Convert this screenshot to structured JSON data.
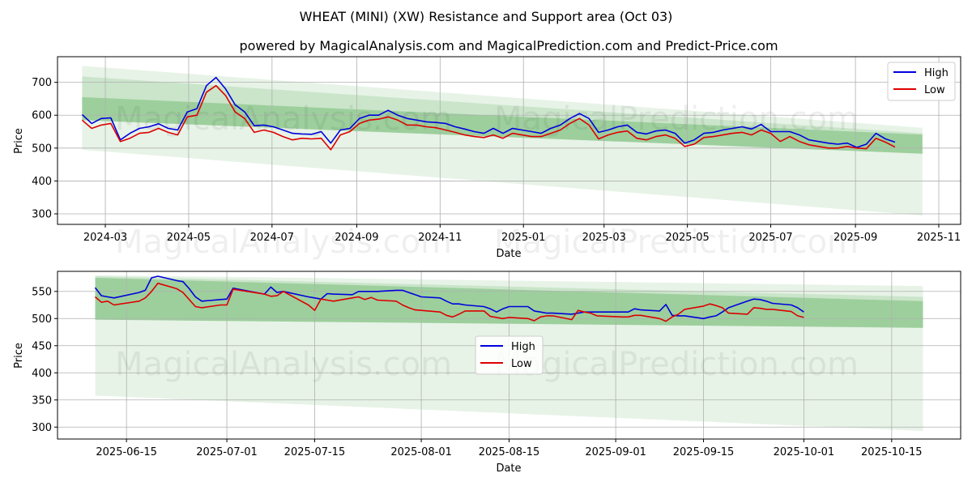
{
  "title": "WHEAT (MINI) (XW) Resistance and Support area (Oct 03)",
  "subtitle": "powered by MagicalAnalysis.com and MagicalPrediction.com and Predict-Price.com",
  "watermarks": [
    "MagicalAnalysis.com",
    "MagicalPrediction.com"
  ],
  "colors": {
    "high": "#0000dd",
    "low": "#dd0000",
    "band_light": "#d4e9d4",
    "band_mid": "#b2d8b2",
    "band_dark": "#7fbf7f",
    "grid": "#b0b0b0"
  },
  "chart_data": [
    {
      "type": "line",
      "xlabel": "Date",
      "ylabel": "Price",
      "xlim": [
        "2024-01-26",
        "2025-11-17"
      ],
      "ylim": [
        268,
        778
      ],
      "x_ticks": [
        "2024-03",
        "2024-05",
        "2024-07",
        "2024-09",
        "2024-11",
        "2025-01",
        "2025-03",
        "2025-05",
        "2025-07",
        "2025-09",
        "2025-11"
      ],
      "y_ticks": [
        300,
        400,
        500,
        600,
        700
      ],
      "legend": {
        "position": "top-right",
        "entries": [
          "High",
          "Low"
        ]
      },
      "bands": [
        {
          "name": "outer",
          "x": [
            "2024-02-13",
            "2025-10-20"
          ],
          "upper": [
            750,
            562
          ],
          "lower": [
            495,
            295
          ]
        },
        {
          "name": "middle",
          "x": [
            "2024-02-13",
            "2025-10-20"
          ],
          "upper": [
            718,
            545
          ],
          "lower": [
            585,
            483
          ]
        },
        {
          "name": "inner",
          "x": [
            "2024-02-13",
            "2025-10-20"
          ],
          "upper": [
            655,
            541
          ],
          "lower": [
            585,
            483
          ]
        }
      ],
      "series": [
        {
          "name": "High",
          "x": [
            "2024-02-13",
            "2024-02-20",
            "2024-02-27",
            "2024-03-05",
            "2024-03-12",
            "2024-03-19",
            "2024-03-26",
            "2024-04-02",
            "2024-04-09",
            "2024-04-16",
            "2024-04-23",
            "2024-04-30",
            "2024-05-07",
            "2024-05-14",
            "2024-05-21",
            "2024-05-28",
            "2024-06-04",
            "2024-06-11",
            "2024-06-18",
            "2024-06-25",
            "2024-07-02",
            "2024-07-09",
            "2024-07-16",
            "2024-07-23",
            "2024-07-30",
            "2024-08-06",
            "2024-08-13",
            "2024-08-20",
            "2024-08-27",
            "2024-09-03",
            "2024-09-10",
            "2024-09-17",
            "2024-09-24",
            "2024-10-01",
            "2024-10-08",
            "2024-10-15",
            "2024-10-22",
            "2024-10-29",
            "2024-11-05",
            "2024-11-12",
            "2024-11-19",
            "2024-11-26",
            "2024-12-03",
            "2024-12-10",
            "2024-12-17",
            "2024-12-24",
            "2024-12-31",
            "2025-01-07",
            "2025-01-14",
            "2025-01-21",
            "2025-01-28",
            "2025-02-04",
            "2025-02-11",
            "2025-02-18",
            "2025-02-25",
            "2025-03-04",
            "2025-03-11",
            "2025-03-18",
            "2025-03-25",
            "2025-04-01",
            "2025-04-08",
            "2025-04-15",
            "2025-04-22",
            "2025-04-29",
            "2025-05-06",
            "2025-05-13",
            "2025-05-20",
            "2025-05-27",
            "2025-06-03",
            "2025-06-10",
            "2025-06-17",
            "2025-06-24",
            "2025-07-01",
            "2025-07-08",
            "2025-07-15",
            "2025-07-22",
            "2025-07-29",
            "2025-08-05",
            "2025-08-12",
            "2025-08-19",
            "2025-08-26",
            "2025-09-02",
            "2025-09-09",
            "2025-09-16",
            "2025-09-23",
            "2025-09-30"
          ],
          "values": [
            602,
            575,
            590,
            592,
            525,
            545,
            560,
            565,
            574,
            560,
            555,
            610,
            620,
            690,
            715,
            680,
            632,
            610,
            568,
            570,
            565,
            555,
            545,
            543,
            542,
            550,
            515,
            555,
            560,
            590,
            600,
            600,
            615,
            600,
            590,
            585,
            580,
            578,
            575,
            565,
            558,
            550,
            545,
            560,
            545,
            560,
            555,
            550,
            545,
            560,
            570,
            590,
            605,
            590,
            548,
            555,
            565,
            570,
            548,
            543,
            552,
            555,
            545,
            515,
            525,
            545,
            548,
            555,
            560,
            565,
            558,
            572,
            550,
            550,
            550,
            540,
            525,
            520,
            515,
            512,
            515,
            502,
            512,
            545,
            528,
            518
          ]
        },
        {
          "name": "Low",
          "x": [
            "2024-02-13",
            "2024-02-20",
            "2024-02-27",
            "2024-03-05",
            "2024-03-12",
            "2024-03-19",
            "2024-03-26",
            "2024-04-02",
            "2024-04-09",
            "2024-04-16",
            "2024-04-23",
            "2024-04-30",
            "2024-05-07",
            "2024-05-14",
            "2024-05-21",
            "2024-05-28",
            "2024-06-04",
            "2024-06-11",
            "2024-06-18",
            "2024-06-25",
            "2024-07-02",
            "2024-07-09",
            "2024-07-16",
            "2024-07-23",
            "2024-07-30",
            "2024-08-06",
            "2024-08-13",
            "2024-08-20",
            "2024-08-27",
            "2024-09-03",
            "2024-09-10",
            "2024-09-17",
            "2024-09-24",
            "2024-10-01",
            "2024-10-08",
            "2024-10-15",
            "2024-10-22",
            "2024-10-29",
            "2024-11-05",
            "2024-11-12",
            "2024-11-19",
            "2024-11-26",
            "2024-12-03",
            "2024-12-10",
            "2024-12-17",
            "2024-12-24",
            "2024-12-31",
            "2025-01-07",
            "2025-01-14",
            "2025-01-21",
            "2025-01-28",
            "2025-02-04",
            "2025-02-11",
            "2025-02-18",
            "2025-02-25",
            "2025-03-04",
            "2025-03-11",
            "2025-03-18",
            "2025-03-25",
            "2025-04-01",
            "2025-04-08",
            "2025-04-15",
            "2025-04-22",
            "2025-04-29",
            "2025-05-06",
            "2025-05-13",
            "2025-05-20",
            "2025-05-27",
            "2025-06-03",
            "2025-06-10",
            "2025-06-17",
            "2025-06-24",
            "2025-07-01",
            "2025-07-08",
            "2025-07-15",
            "2025-07-22",
            "2025-07-29",
            "2025-08-05",
            "2025-08-12",
            "2025-08-19",
            "2025-08-26",
            "2025-09-02",
            "2025-09-09",
            "2025-09-16",
            "2025-09-23",
            "2025-09-30"
          ],
          "values": [
            585,
            560,
            570,
            575,
            520,
            530,
            545,
            548,
            560,
            548,
            540,
            595,
            600,
            670,
            690,
            660,
            610,
            590,
            548,
            555,
            548,
            535,
            525,
            530,
            528,
            530,
            495,
            540,
            550,
            575,
            585,
            588,
            595,
            585,
            570,
            570,
            565,
            562,
            555,
            548,
            540,
            535,
            532,
            540,
            530,
            545,
            540,
            535,
            535,
            545,
            555,
            575,
            590,
            570,
            528,
            540,
            548,
            552,
            530,
            525,
            535,
            540,
            530,
            505,
            512,
            532,
            535,
            540,
            545,
            548,
            540,
            555,
            545,
            520,
            535,
            520,
            510,
            505,
            500,
            500,
            505,
            500,
            498,
            530,
            518,
            503
          ]
        }
      ]
    },
    {
      "type": "line",
      "xlabel": "Date",
      "ylabel": "Price",
      "xlim": [
        "2025-06-04",
        "2025-10-26"
      ],
      "ylim": [
        278,
        587
      ],
      "x_ticks": [
        "2025-06-15",
        "2025-07-01",
        "2025-07-15",
        "2025-08-01",
        "2025-08-15",
        "2025-09-01",
        "2025-09-15",
        "2025-10-01",
        "2025-10-15"
      ],
      "y_ticks": [
        300,
        350,
        400,
        450,
        500,
        550
      ],
      "legend": {
        "position": "center",
        "entries": [
          "High",
          "Low"
        ]
      },
      "bands": [
        {
          "name": "outer",
          "x": [
            "2025-06-10",
            "2025-10-20"
          ],
          "upper": [
            580,
            560
          ],
          "lower": [
            358,
            293
          ]
        },
        {
          "name": "middle",
          "x": [
            "2025-06-10",
            "2025-10-20"
          ],
          "upper": [
            578,
            540
          ],
          "lower": [
            498,
            483
          ]
        },
        {
          "name": "inner",
          "x": [
            "2025-06-10",
            "2025-10-20"
          ],
          "upper": [
            575,
            532
          ],
          "lower": [
            498,
            483
          ]
        }
      ],
      "series": [
        {
          "name": "High",
          "x": [
            "2025-06-10",
            "2025-06-11",
            "2025-06-12",
            "2025-06-13",
            "2025-06-17",
            "2025-06-18",
            "2025-06-19",
            "2025-06-20",
            "2025-06-23",
            "2025-06-24",
            "2025-06-25",
            "2025-06-26",
            "2025-06-27",
            "2025-06-30",
            "2025-07-01",
            "2025-07-02",
            "2025-07-07",
            "2025-07-08",
            "2025-07-09",
            "2025-07-10",
            "2025-07-14",
            "2025-07-15",
            "2025-07-16",
            "2025-07-17",
            "2025-07-18",
            "2025-07-21",
            "2025-07-22",
            "2025-07-23",
            "2025-07-24",
            "2025-07-25",
            "2025-07-28",
            "2025-07-29",
            "2025-07-30",
            "2025-07-31",
            "2025-08-01",
            "2025-08-04",
            "2025-08-05",
            "2025-08-06",
            "2025-08-07",
            "2025-08-08",
            "2025-08-11",
            "2025-08-12",
            "2025-08-13",
            "2025-08-14",
            "2025-08-15",
            "2025-08-18",
            "2025-08-19",
            "2025-08-20",
            "2025-08-21",
            "2025-08-22",
            "2025-08-25",
            "2025-08-26",
            "2025-08-27",
            "2025-08-28",
            "2025-08-29",
            "2025-09-02",
            "2025-09-03",
            "2025-09-04",
            "2025-09-05",
            "2025-09-08",
            "2025-09-09",
            "2025-09-10",
            "2025-09-11",
            "2025-09-12",
            "2025-09-15",
            "2025-09-16",
            "2025-09-17",
            "2025-09-18",
            "2025-09-19",
            "2025-09-22",
            "2025-09-23",
            "2025-09-24",
            "2025-09-25",
            "2025-09-26",
            "2025-09-29",
            "2025-09-30",
            "2025-10-01"
          ],
          "values": [
            557,
            542,
            540,
            538,
            548,
            552,
            575,
            578,
            570,
            568,
            555,
            540,
            532,
            535,
            536,
            556,
            545,
            558,
            548,
            550,
            540,
            538,
            536,
            546,
            545,
            544,
            550,
            550,
            550,
            550,
            552,
            552,
            548,
            544,
            540,
            538,
            532,
            527,
            527,
            525,
            522,
            518,
            512,
            518,
            522,
            522,
            514,
            512,
            510,
            510,
            508,
            510,
            512,
            512,
            512,
            512,
            512,
            518,
            516,
            514,
            526,
            506,
            505,
            505,
            500,
            503,
            505,
            512,
            520,
            532,
            536,
            535,
            532,
            528,
            525,
            520,
            512
          ]
        },
        {
          "name": "Low",
          "x": [
            "2025-06-10",
            "2025-06-11",
            "2025-06-12",
            "2025-06-13",
            "2025-06-17",
            "2025-06-18",
            "2025-06-19",
            "2025-06-20",
            "2025-06-23",
            "2025-06-24",
            "2025-06-25",
            "2025-06-26",
            "2025-06-27",
            "2025-06-30",
            "2025-07-01",
            "2025-07-02",
            "2025-07-07",
            "2025-07-08",
            "2025-07-09",
            "2025-07-10",
            "2025-07-14",
            "2025-07-15",
            "2025-07-16",
            "2025-07-17",
            "2025-07-18",
            "2025-07-21",
            "2025-07-22",
            "2025-07-23",
            "2025-07-24",
            "2025-07-25",
            "2025-07-28",
            "2025-07-29",
            "2025-07-30",
            "2025-07-31",
            "2025-08-01",
            "2025-08-04",
            "2025-08-05",
            "2025-08-06",
            "2025-08-07",
            "2025-08-08",
            "2025-08-11",
            "2025-08-12",
            "2025-08-13",
            "2025-08-14",
            "2025-08-15",
            "2025-08-18",
            "2025-08-19",
            "2025-08-20",
            "2025-08-21",
            "2025-08-22",
            "2025-08-25",
            "2025-08-26",
            "2025-08-27",
            "2025-08-28",
            "2025-08-29",
            "2025-09-02",
            "2025-09-03",
            "2025-09-04",
            "2025-09-05",
            "2025-09-08",
            "2025-09-09",
            "2025-09-10",
            "2025-09-11",
            "2025-09-12",
            "2025-09-15",
            "2025-09-16",
            "2025-09-17",
            "2025-09-18",
            "2025-09-19",
            "2025-09-22",
            "2025-09-23",
            "2025-09-24",
            "2025-09-25",
            "2025-09-26",
            "2025-09-29",
            "2025-09-30",
            "2025-10-01"
          ],
          "values": [
            540,
            530,
            532,
            525,
            532,
            538,
            550,
            565,
            555,
            548,
            535,
            522,
            520,
            525,
            525,
            554,
            545,
            541,
            542,
            550,
            525,
            515,
            536,
            534,
            532,
            538,
            540,
            535,
            539,
            534,
            532,
            525,
            520,
            516,
            515,
            512,
            506,
            503,
            508,
            514,
            514,
            504,
            502,
            500,
            502,
            500,
            496,
            503,
            505,
            505,
            498,
            515,
            512,
            510,
            505,
            503,
            503,
            506,
            506,
            500,
            495,
            503,
            508,
            517,
            523,
            527,
            524,
            520,
            510,
            508,
            520,
            519,
            517,
            517,
            513,
            505,
            502
          ]
        }
      ]
    }
  ]
}
